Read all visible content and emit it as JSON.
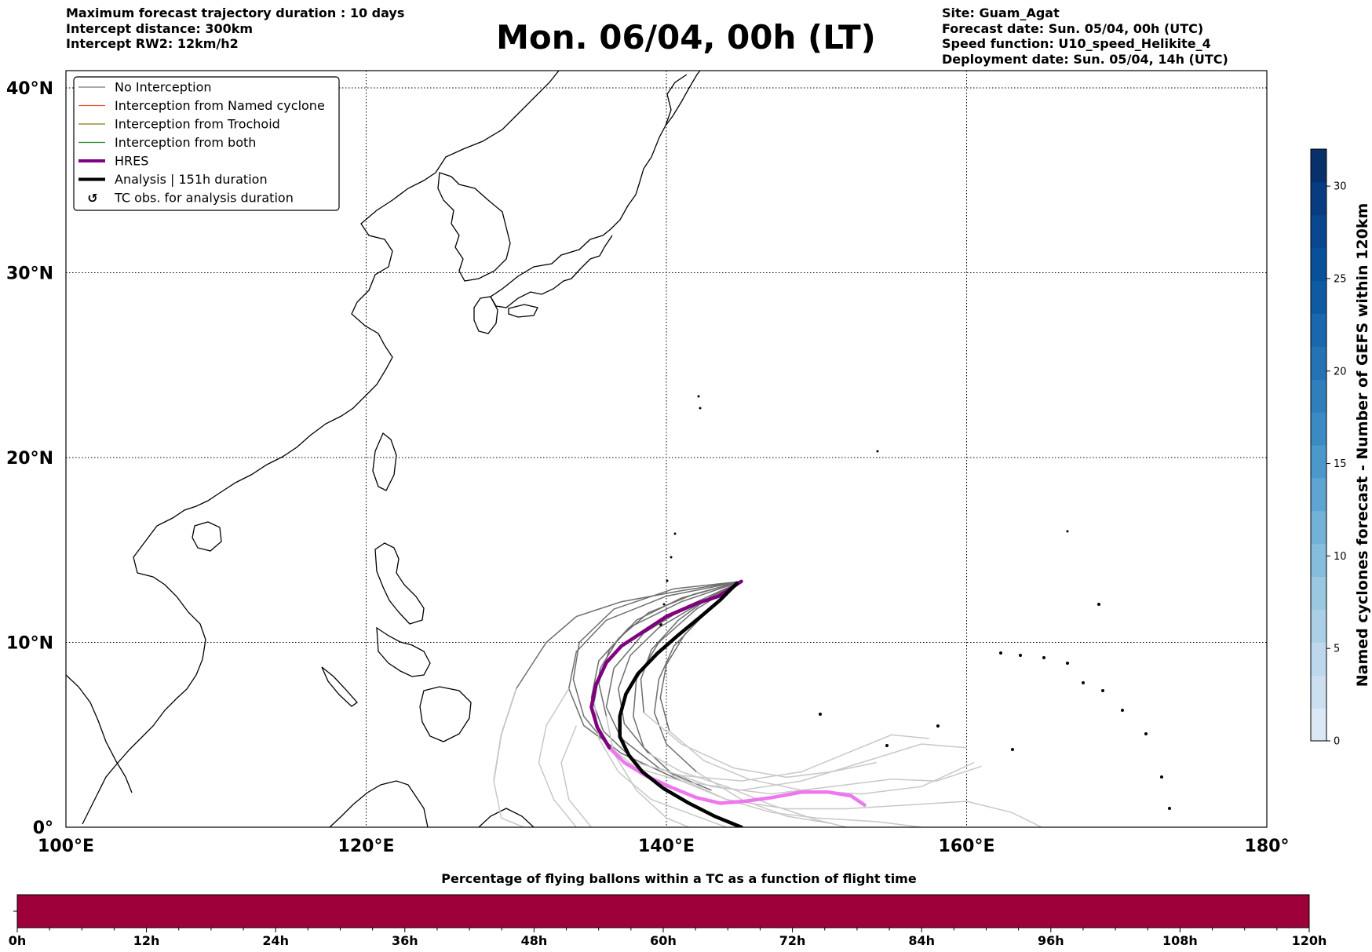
{
  "header": {
    "left_lines": [
      "Maximum forecast trajectory duration : 10 days",
      "Intercept distance: 300km",
      "Intercept RW2: 12km/h2"
    ],
    "title": "Mon. 06/04, 00h (LT)",
    "right_lines": [
      "Site: Guam_Agat",
      "Forecast date: Sun. 05/04, 00h (UTC)",
      "Speed function: U10_speed_Helikite_4",
      "Deployment date: Sun. 05/04, 14h (UTC)"
    ]
  },
  "map": {
    "lon_range": [
      100,
      180
    ],
    "lat_range": [
      0,
      41
    ],
    "lon_ticks": [
      {
        "value": 100,
        "label": "100°E"
      },
      {
        "value": 120,
        "label": "120°E"
      },
      {
        "value": 140,
        "label": "140°E"
      },
      {
        "value": 160,
        "label": "160°E"
      },
      {
        "value": 180,
        "label": "180°"
      }
    ],
    "lat_ticks": [
      {
        "value": 0,
        "label": "0°"
      },
      {
        "value": 10,
        "label": "10°N"
      },
      {
        "value": 20,
        "label": "20°N"
      },
      {
        "value": 30,
        "label": "30°N"
      },
      {
        "value": 40,
        "label": "40°N"
      }
    ],
    "grid": "dotted"
  },
  "legend": {
    "placement": "top-left",
    "entries": [
      {
        "label": "No Interception",
        "color": "#777777",
        "style": "thin-line"
      },
      {
        "label": "Interception from Named cyclone",
        "color": "#e8502a",
        "style": "thin-line"
      },
      {
        "label": "Interception from Trochoid",
        "color": "#808000",
        "style": "thin-line"
      },
      {
        "label": "Interception from both",
        "color": "#2e8b2e",
        "style": "thin-line"
      },
      {
        "label": "HRES",
        "color": "#800080",
        "style": "thick-line"
      },
      {
        "label": "Analysis | 151h duration",
        "color": "#000000",
        "style": "thick-line"
      },
      {
        "label": "TC obs. for analysis duration",
        "color": "#000000",
        "style": "symbol"
      }
    ]
  },
  "chart_data": [
    {
      "type": "line",
      "series": [
        {
          "name": "HRES",
          "color": "#800080",
          "color_later": "#ee77ee",
          "points": [
            [
              145.0,
              13.3
            ],
            [
              143.5,
              12.5
            ],
            [
              142.0,
              12.1
            ],
            [
              140.0,
              11.4
            ],
            [
              138.5,
              10.6
            ],
            [
              137.0,
              9.8
            ],
            [
              136.0,
              8.9
            ],
            [
              135.3,
              7.7
            ],
            [
              135.0,
              6.5
            ],
            [
              135.4,
              5.4
            ],
            [
              136.2,
              4.3
            ],
            [
              137.2,
              3.5
            ],
            [
              138.6,
              2.8
            ],
            [
              140.2,
              2.2
            ],
            [
              142.0,
              1.6
            ],
            [
              143.6,
              1.3
            ],
            [
              145.2,
              1.4
            ],
            [
              147.0,
              1.6
            ],
            [
              149.0,
              1.9
            ],
            [
              150.8,
              1.9
            ],
            [
              152.3,
              1.7
            ],
            [
              153.2,
              1.2
            ]
          ]
        },
        {
          "name": "Analysis | 151h duration",
          "color": "#000000",
          "points": [
            [
              144.7,
              13.2
            ],
            [
              143.6,
              12.3
            ],
            [
              142.3,
              11.4
            ],
            [
              140.8,
              10.4
            ],
            [
              139.4,
              9.4
            ],
            [
              138.1,
              8.3
            ],
            [
              137.3,
              7.2
            ],
            [
              136.9,
              6.0
            ],
            [
              136.9,
              4.9
            ],
            [
              137.5,
              3.9
            ],
            [
              138.4,
              3.0
            ],
            [
              139.8,
              2.1
            ],
            [
              141.5,
              1.3
            ],
            [
              143.2,
              0.6
            ],
            [
              145.0,
              0.0
            ]
          ]
        }
      ]
    },
    {
      "type": "bar",
      "title": "Percentage of flying ballons within a TC as a function of flight time",
      "x_range": [
        0,
        120
      ],
      "x_unit": "h",
      "x_ticks": [
        "0h",
        "12h",
        "24h",
        "36h",
        "48h",
        "60h",
        "72h",
        "84h",
        "96h",
        "108h",
        "120h"
      ],
      "fill_color": "#9e0039"
    },
    {
      "type": "heatmap",
      "title": "Named cyclones forecast - Number of GEFS within 120km",
      "range": [
        0,
        32
      ],
      "ticks": [
        "0",
        "5",
        "10",
        "15",
        "20",
        "25",
        "30"
      ],
      "colors": [
        "#dbe8f5",
        "#ccdff0",
        "#bdd7ec",
        "#abcfe6",
        "#9ac8e0",
        "#86bcdc",
        "#72b1d8",
        "#5fa5d3",
        "#4b98cb",
        "#3a8bc3",
        "#2f7fbc",
        "#2473b5",
        "#1967ad",
        "#0f5ba3",
        "#08519a",
        "#084690",
        "#083c80",
        "#08306b"
      ]
    }
  ]
}
